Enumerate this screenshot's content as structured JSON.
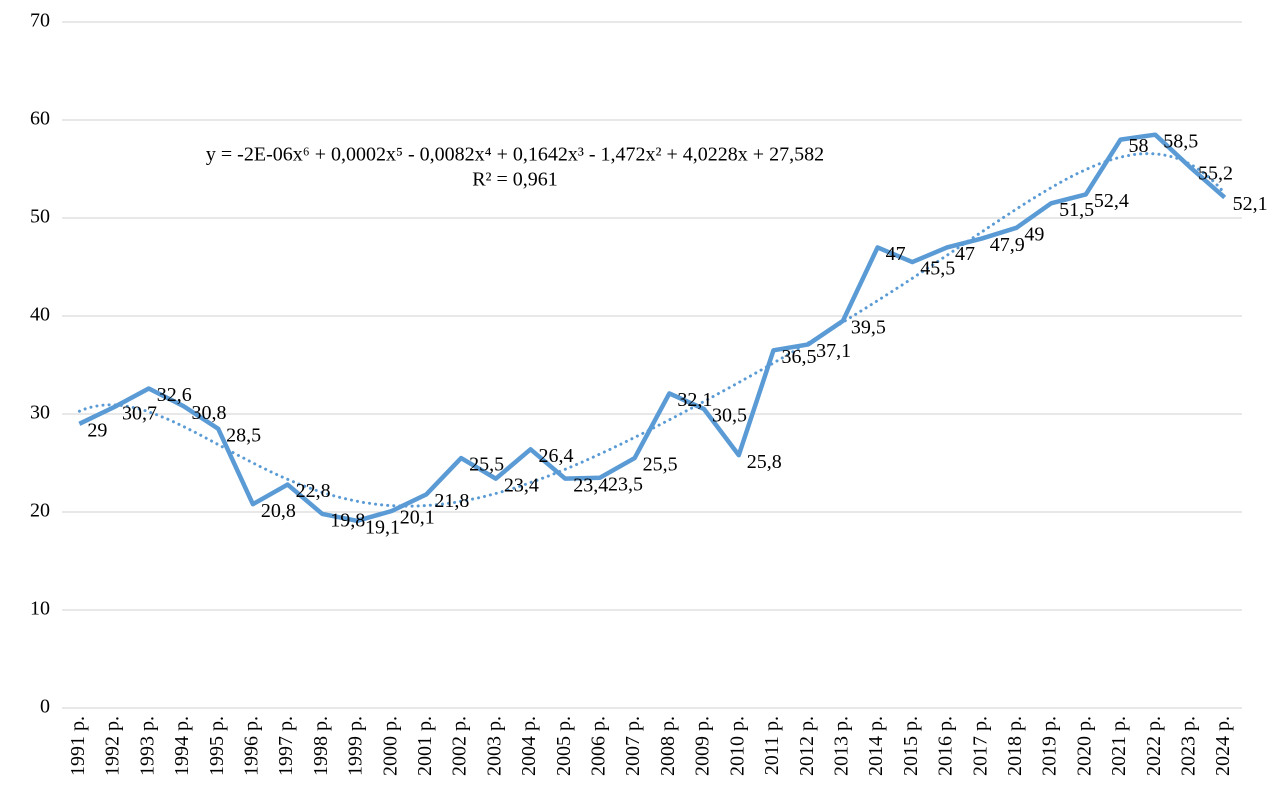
{
  "chart_data": {
    "type": "line",
    "categories": [
      "1991 p.",
      "1992 p.",
      "1993 p.",
      "1994 p.",
      "1995 p.",
      "1996 p.",
      "1997 p.",
      "1998 p.",
      "1999 p.",
      "2000 p.",
      "2001 p.",
      "2002 p.",
      "2003 p.",
      "2004 p.",
      "2005 p.",
      "2006 p.",
      "2007 p.",
      "2008 p.",
      "2009 p.",
      "2010 p.",
      "2011 p.",
      "2012 p.",
      "2013 p.",
      "2014 p.",
      "2015 p.",
      "2016 p.",
      "2017 p.",
      "2018 p.",
      "2019 p.",
      "2020 p.",
      "2021 p.",
      "2022 p.",
      "2023 p.",
      "2024 p."
    ],
    "values": [
      29,
      30.7,
      32.6,
      30.8,
      28.5,
      20.8,
      22.8,
      19.8,
      19.1,
      20.1,
      21.8,
      25.5,
      23.4,
      26.4,
      23.4,
      23.5,
      25.5,
      32.1,
      30.5,
      25.8,
      36.5,
      37.1,
      39.5,
      47,
      45.5,
      47,
      47.9,
      49,
      51.5,
      52.4,
      58,
      58.5,
      55.2,
      52.1
    ],
    "value_labels": [
      "29",
      "30,7",
      "32,6",
      "30,8",
      "28,5",
      "20,8",
      "22,8",
      "19,8",
      "19,1",
      "20,1",
      "21,8",
      "25,5",
      "23,4",
      "26,4",
      "23,4",
      "23,5",
      "25,5",
      "32,1",
      "30,5",
      "25,8",
      "36,5",
      "37,1",
      "39,5",
      "47",
      "45,5",
      "47",
      "47,9",
      "49",
      "51,5",
      "52,4",
      "58",
      "58,5",
      "55,2",
      "52,1"
    ],
    "color": "#5b9bd5",
    "ylim": [
      0,
      70
    ],
    "yticks": [
      0,
      10,
      20,
      30,
      40,
      50,
      60,
      70
    ],
    "grid": true,
    "trendline": {
      "type": "polynomial",
      "order": 6,
      "equation": "y = -2E-06x⁶ + 0,0002x⁵ - 0,0082x⁴ + 0,1642x³ - 1,472x² + 4,0228x + 27,582",
      "r_squared": "R² = 0,961"
    }
  }
}
